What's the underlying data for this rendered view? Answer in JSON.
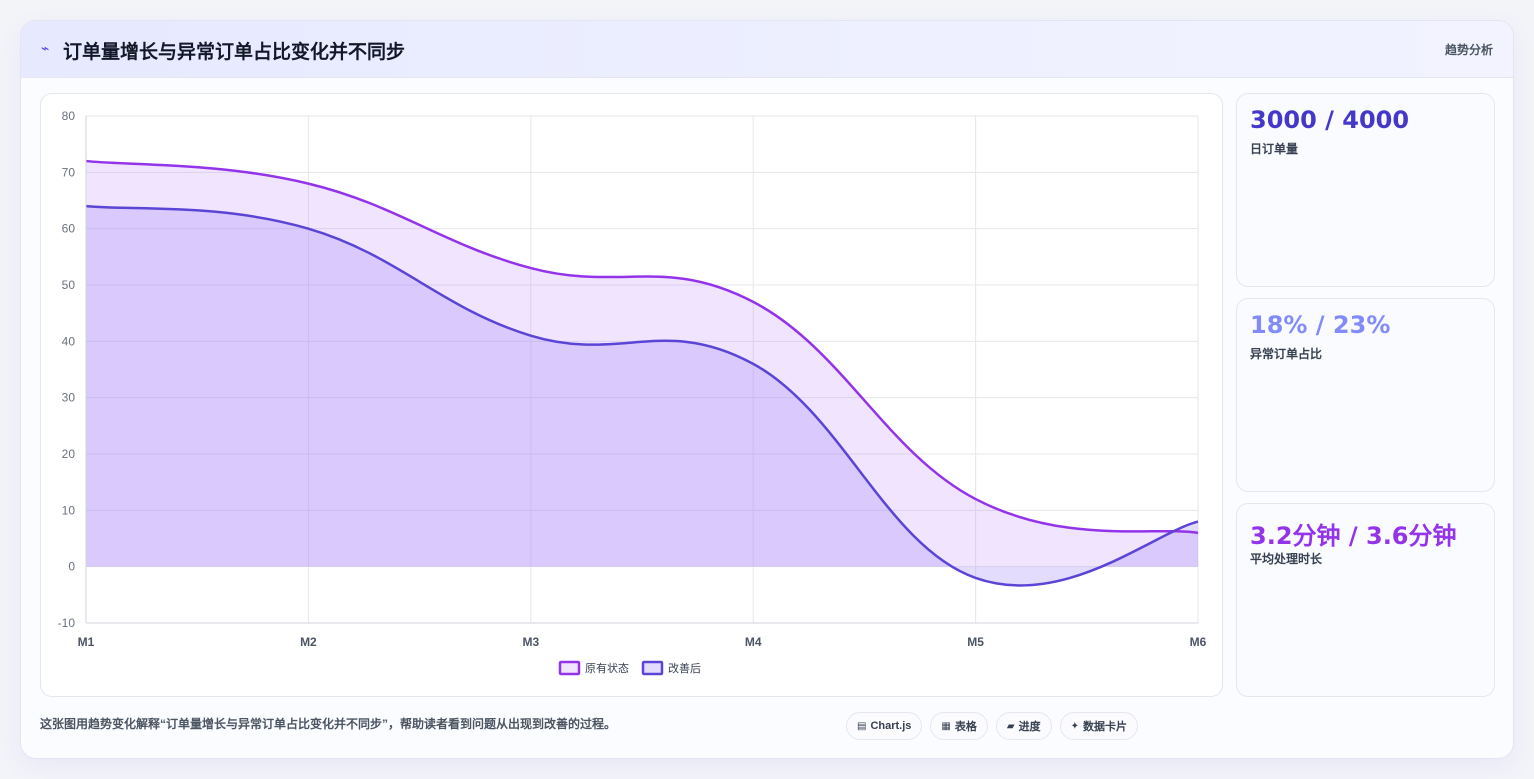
{
  "header": {
    "icon": "trend-line-icon",
    "icon_glyph": "⌁",
    "title": "订单量增长与异常订单占比变化并不同步",
    "tag": "趋势分析"
  },
  "stats": [
    {
      "value": "3000 / 4000",
      "label": "日订单量",
      "color": "#4338ca"
    },
    {
      "value": "18% / 23%",
      "label": "异常订单占比",
      "color": "#818cf8"
    },
    {
      "value": "3.2分钟 / 3.6分钟",
      "label": "平均处理时长",
      "color": "#9333ea"
    }
  ],
  "footer": {
    "text": "这张图用趋势变化解释“订单量增长与异常订单占比变化并不同步”，帮助读者看到问题从出现到改善的过程。",
    "chips": [
      {
        "icon": "chart-icon",
        "glyph": "▤",
        "label": "Chart.js"
      },
      {
        "icon": "table-icon",
        "glyph": "▦",
        "label": "表格"
      },
      {
        "icon": "progress-icon",
        "glyph": "▰",
        "label": "进度"
      },
      {
        "icon": "data-card-icon",
        "glyph": "✦",
        "label": "数据卡片"
      }
    ]
  },
  "chart_data": {
    "type": "area",
    "categories": [
      "M1",
      "M2",
      "M3",
      "M4",
      "M5",
      "M6"
    ],
    "series": [
      {
        "name": "原有状态",
        "values": [
          72,
          68,
          53,
          47,
          12,
          6
        ],
        "color": "#9333ea",
        "fill": "rgba(192,132,252,0.22)"
      },
      {
        "name": "改善后",
        "values": [
          64,
          60,
          41,
          36,
          -2,
          8
        ],
        "color": "#5b45d6",
        "fill": "rgba(167,139,250,0.30)"
      }
    ],
    "ylim": [
      -10,
      80
    ],
    "yticks": [
      80,
      70,
      60,
      50,
      40,
      30,
      20,
      10,
      0,
      -10
    ],
    "grid": true,
    "legend": "bottom"
  }
}
